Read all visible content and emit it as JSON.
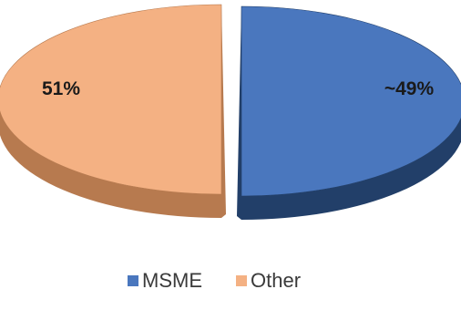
{
  "chart_data": {
    "type": "pie",
    "style": "3d-exploded",
    "slices": [
      {
        "name": "Other",
        "value": 51,
        "label": "51%",
        "color": "#F4B183",
        "side_color": "#B77A4F"
      },
      {
        "name": "MSME",
        "value": 49,
        "label": "~49%",
        "color": "#4A77BE",
        "side_color": "#223F69"
      }
    ],
    "legend": {
      "placement": "bottom",
      "entries": [
        {
          "name": "MSME",
          "color": "#4A77BE"
        },
        {
          "name": "Other",
          "color": "#F4B183"
        }
      ]
    }
  }
}
